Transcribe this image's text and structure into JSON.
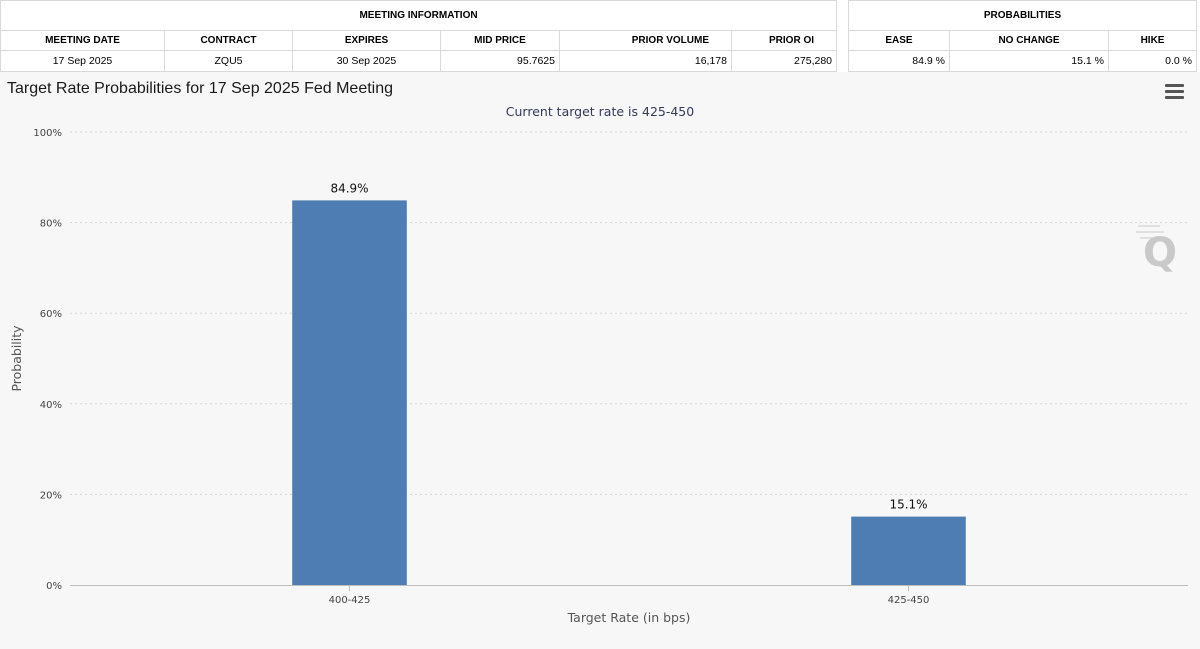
{
  "meeting_info": {
    "group_label": "MEETING INFORMATION",
    "columns": [
      "MEETING DATE",
      "CONTRACT",
      "EXPIRES",
      "MID PRICE",
      "PRIOR VOLUME",
      "PRIOR OI"
    ],
    "row": [
      "17 Sep 2025",
      "ZQU5",
      "30 Sep 2025",
      "95.7625",
      "16,178",
      "275,280"
    ]
  },
  "probabilities": {
    "group_label": "PROBABILITIES",
    "columns": [
      "EASE",
      "NO CHANGE",
      "HIKE"
    ],
    "row": [
      "84.9 %",
      "15.1 %",
      "0.0 %"
    ]
  },
  "chart_data": {
    "type": "bar",
    "title": "Target Rate Probabilities for 17 Sep 2025 Fed Meeting",
    "subtitle": "Current target rate is 425-450",
    "xlabel": "Target Rate (in bps)",
    "ylabel": "Probability",
    "categories": [
      "400-425",
      "425-450"
    ],
    "values": [
      84.9,
      15.1
    ],
    "data_labels": [
      "84.9%",
      "15.1%"
    ],
    "ylim": [
      0,
      100
    ],
    "yticks": [
      "0%",
      "20%",
      "40%",
      "60%",
      "80%",
      "100%"
    ],
    "ytick_values": [
      0,
      20,
      40,
      60,
      80,
      100
    ],
    "grid": true,
    "bar_color": "#4e7db3"
  }
}
